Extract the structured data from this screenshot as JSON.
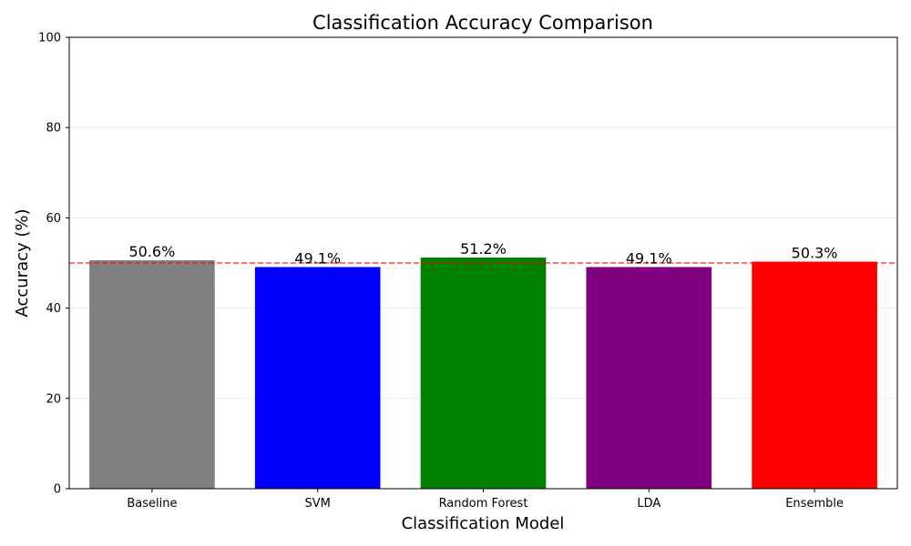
{
  "chart_data": {
    "type": "bar",
    "title": "Classification Accuracy Comparison",
    "xlabel": "Classification Model",
    "ylabel": "Accuracy (%)",
    "categories": [
      "Baseline",
      "SVM",
      "Random Forest",
      "LDA",
      "Ensemble"
    ],
    "values": [
      50.6,
      49.1,
      51.2,
      49.1,
      50.3
    ],
    "value_labels": [
      "50.6%",
      "49.1%",
      "51.2%",
      "49.1%",
      "50.3%"
    ],
    "colors": [
      "#808080",
      "#0000ff",
      "#008000",
      "#800080",
      "#ff0000"
    ],
    "ylim": [
      0,
      100
    ],
    "yticks": [
      0,
      20,
      40,
      60,
      80,
      100
    ],
    "reference_line": {
      "value": 50,
      "color": "#ff0000",
      "style": "dashed"
    },
    "grid": "horizontal",
    "legend": "none"
  }
}
